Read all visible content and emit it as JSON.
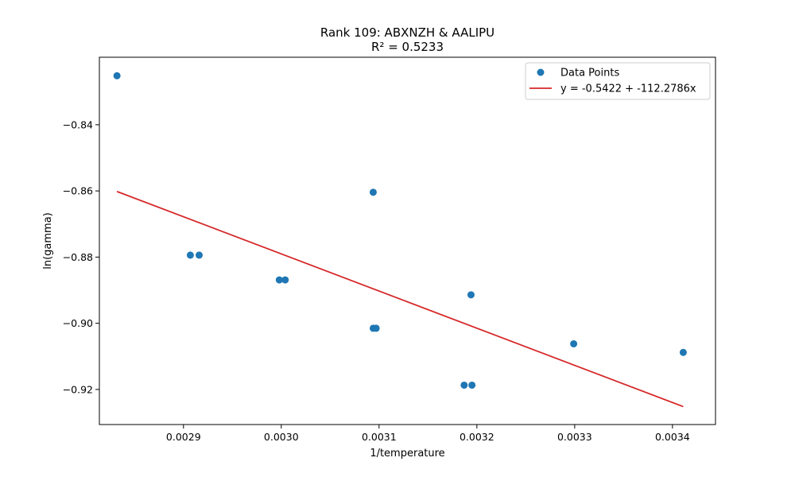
{
  "chart_data": {
    "type": "scatter",
    "title": "Rank 109: ABXNZH & AALIPU",
    "subtitle": "R² = 0.5233",
    "xlabel": "1/temperature",
    "ylabel": "ln(gamma)",
    "xlim": [
      0.002814,
      0.003444
    ],
    "ylim": [
      -0.9306,
      -0.8196
    ],
    "xticks": [
      0.0029,
      0.003,
      0.0031,
      0.0032,
      0.0033,
      0.0034
    ],
    "xtick_labels": [
      "0.0029",
      "0.0030",
      "0.0031",
      "0.0032",
      "0.0033",
      "0.0034"
    ],
    "yticks": [
      -0.84,
      -0.86,
      -0.88,
      -0.9,
      -0.92
    ],
    "ytick_labels": [
      "−0.84",
      "−0.86",
      "−0.88",
      "−0.90",
      "−0.92"
    ],
    "grid": false,
    "legend_position": "top-right",
    "series": [
      {
        "name": "Data Points",
        "kind": "scatter",
        "color": "#1f77b4",
        "points": [
          {
            "x": 0.002832,
            "y": -0.8252
          },
          {
            "x": 0.002907,
            "y": -0.8794
          },
          {
            "x": 0.002916,
            "y": -0.8794
          },
          {
            "x": 0.002998,
            "y": -0.8869
          },
          {
            "x": 0.003004,
            "y": -0.8869
          },
          {
            "x": 0.003094,
            "y": -0.8604
          },
          {
            "x": 0.003094,
            "y": -0.9015
          },
          {
            "x": 0.003097,
            "y": -0.9015
          },
          {
            "x": 0.003187,
            "y": -0.9187
          },
          {
            "x": 0.003194,
            "y": -0.8914
          },
          {
            "x": 0.003195,
            "y": -0.9187
          },
          {
            "x": 0.003299,
            "y": -0.9062
          },
          {
            "x": 0.003411,
            "y": -0.9088
          }
        ]
      },
      {
        "name": "y = -0.5422 + -112.2786x",
        "kind": "line",
        "color": "#d62728",
        "intercept": -0.5422,
        "slope": -112.2786,
        "x_range": [
          0.002832,
          0.003411
        ]
      }
    ]
  }
}
